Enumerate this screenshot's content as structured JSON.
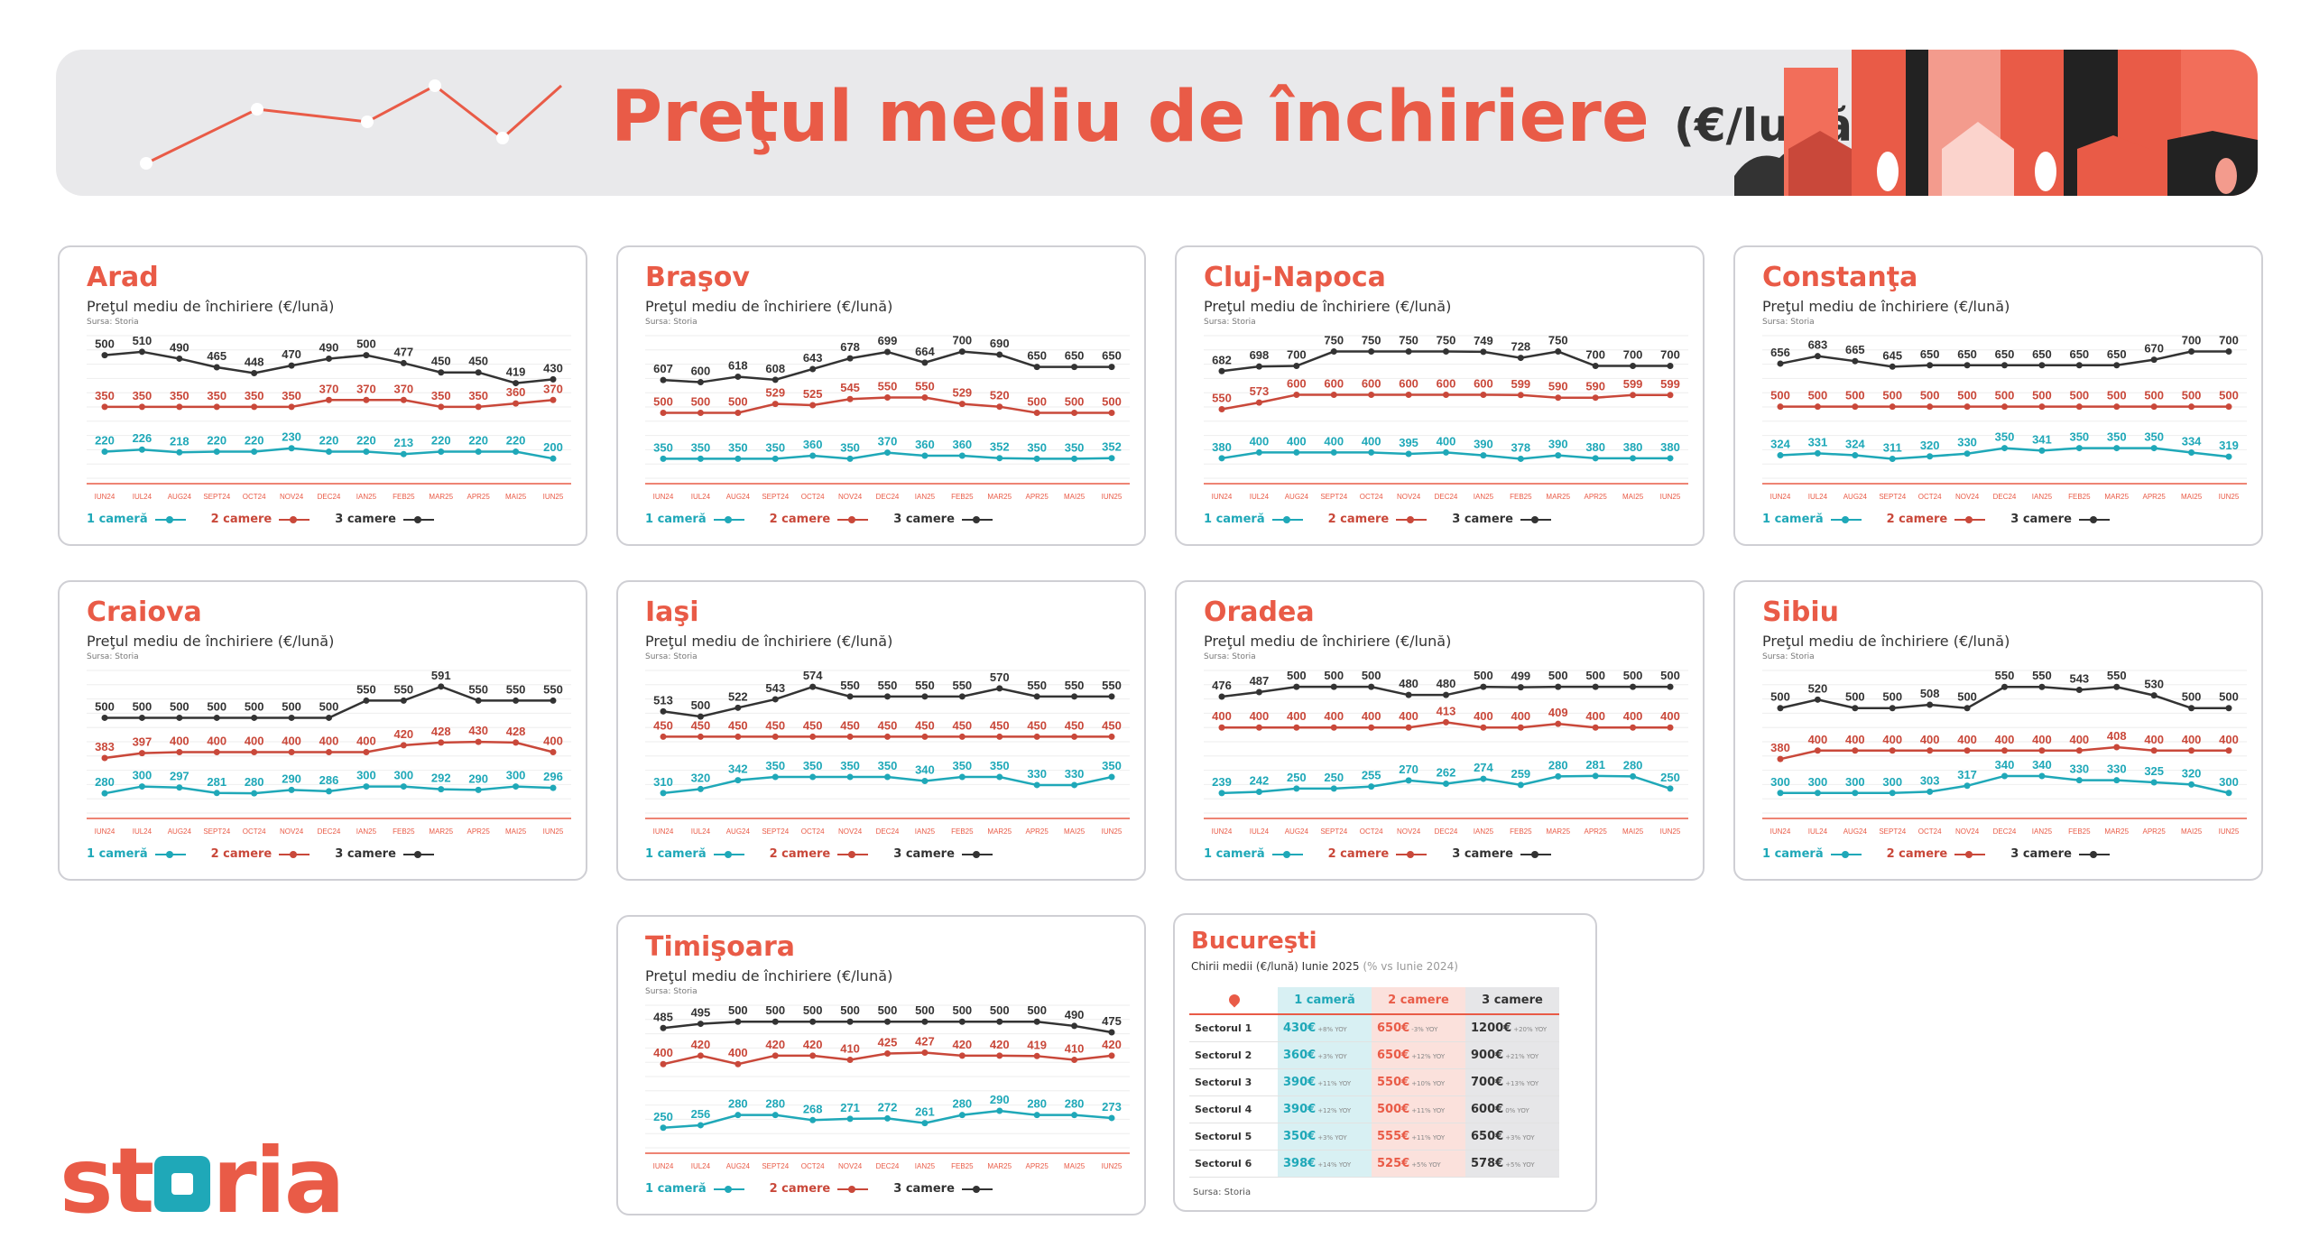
{
  "header": {
    "title": "Preţul mediu de închiriere",
    "unit": "(€/lună)"
  },
  "logo": {
    "text_before": "st",
    "text_after": "ria",
    "label": "storia"
  },
  "common": {
    "subtitle": "Preţul mediu de închiriere (€/lună)",
    "source": "Sursa: Storia",
    "months": [
      "IUN24",
      "IUL24",
      "AUG24",
      "SEPT24",
      "OCT24",
      "NOV24",
      "DEC24",
      "IAN25",
      "FEB25",
      "MAR25",
      "APR25",
      "MAI25",
      "IUN25"
    ],
    "legend": [
      "1 cameră",
      "2 camere",
      "3 camere"
    ]
  },
  "colors": {
    "one": "#1fa8b8",
    "two": "#c9483a",
    "three": "#333333",
    "accent": "#e95b47"
  },
  "chart_data": [
    {
      "type": "line",
      "title": "Arad",
      "categories_ref": "common.months",
      "series": [
        {
          "name": "1 cameră",
          "values": [
            220,
            226,
            218,
            220,
            220,
            230,
            220,
            220,
            213,
            220,
            220,
            220,
            200
          ]
        },
        {
          "name": "2 camere",
          "values": [
            350,
            350,
            350,
            350,
            350,
            350,
            370,
            370,
            370,
            350,
            350,
            360,
            370
          ]
        },
        {
          "name": "3 camere",
          "values": [
            500,
            510,
            490,
            465,
            448,
            470,
            490,
            500,
            477,
            450,
            450,
            419,
            430
          ]
        }
      ]
    },
    {
      "type": "line",
      "title": "Braşov",
      "categories_ref": "common.months",
      "series": [
        {
          "name": "1 cameră",
          "values": [
            350,
            350,
            350,
            350,
            360,
            350,
            370,
            360,
            360,
            352,
            350,
            350,
            352
          ]
        },
        {
          "name": "2 camere",
          "values": [
            500,
            500,
            500,
            529,
            525,
            545,
            550,
            550,
            529,
            520,
            500,
            500,
            500
          ]
        },
        {
          "name": "3 camere",
          "values": [
            607,
            600,
            618,
            608,
            643,
            678,
            699,
            664,
            700,
            690,
            650,
            650,
            650
          ]
        }
      ]
    },
    {
      "type": "line",
      "title": "Cluj-Napoca",
      "categories_ref": "common.months",
      "series": [
        {
          "name": "1 cameră",
          "values": [
            380,
            400,
            400,
            400,
            400,
            395,
            400,
            390,
            378,
            390,
            380,
            380,
            380
          ]
        },
        {
          "name": "2 camere",
          "values": [
            550,
            573,
            600,
            600,
            600,
            600,
            600,
            600,
            599,
            590,
            590,
            599,
            599
          ]
        },
        {
          "name": "3 camere",
          "values": [
            682,
            698,
            700,
            750,
            750,
            750,
            750,
            749,
            728,
            750,
            700,
            700,
            700
          ]
        }
      ]
    },
    {
      "type": "line",
      "title": "Constanţa",
      "categories_ref": "common.months",
      "series": [
        {
          "name": "1 cameră",
          "values": [
            324,
            331,
            324,
            311,
            320,
            330,
            350,
            341,
            350,
            350,
            350,
            334,
            319
          ]
        },
        {
          "name": "2 camere",
          "values": [
            500,
            500,
            500,
            500,
            500,
            500,
            500,
            500,
            500,
            500,
            500,
            500,
            500
          ]
        },
        {
          "name": "3 camere",
          "values": [
            656,
            683,
            665,
            645,
            650,
            650,
            650,
            650,
            650,
            650,
            670,
            700,
            700
          ]
        }
      ]
    },
    {
      "type": "line",
      "title": "Craiova",
      "categories_ref": "common.months",
      "series": [
        {
          "name": "1 cameră",
          "values": [
            280,
            300,
            297,
            281,
            280,
            290,
            286,
            300,
            300,
            292,
            290,
            300,
            296
          ]
        },
        {
          "name": "2 camere",
          "values": [
            383,
            397,
            400,
            400,
            400,
            400,
            400,
            400,
            420,
            428,
            430,
            428,
            400
          ]
        },
        {
          "name": "3 camere",
          "values": [
            500,
            500,
            500,
            500,
            500,
            500,
            500,
            550,
            550,
            591,
            550,
            550,
            550
          ]
        }
      ]
    },
    {
      "type": "line",
      "title": "Iaşi",
      "categories_ref": "common.months",
      "series": [
        {
          "name": "1 cameră",
          "values": [
            310,
            320,
            342,
            350,
            350,
            350,
            350,
            340,
            350,
            350,
            330,
            330,
            350
          ]
        },
        {
          "name": "2 camere",
          "values": [
            450,
            450,
            450,
            450,
            450,
            450,
            450,
            450,
            450,
            450,
            450,
            450,
            450
          ]
        },
        {
          "name": "3 camere",
          "values": [
            513,
            500,
            522,
            543,
            574,
            550,
            550,
            550,
            550,
            570,
            550,
            550,
            550
          ]
        }
      ]
    },
    {
      "type": "line",
      "title": "Oradea",
      "categories_ref": "common.months",
      "series": [
        {
          "name": "1 cameră",
          "values": [
            239,
            242,
            250,
            250,
            255,
            270,
            262,
            274,
            259,
            280,
            281,
            280,
            250
          ]
        },
        {
          "name": "2 camere",
          "values": [
            400,
            400,
            400,
            400,
            400,
            400,
            413,
            400,
            400,
            409,
            400,
            400,
            400
          ]
        },
        {
          "name": "3 camere",
          "values": [
            476,
            487,
            500,
            500,
            500,
            480,
            480,
            500,
            499,
            500,
            500,
            500,
            500
          ]
        }
      ]
    },
    {
      "type": "line",
      "title": "Sibiu",
      "categories_ref": "common.months",
      "series": [
        {
          "name": "1 cameră",
          "values": [
            300,
            300,
            300,
            300,
            303,
            317,
            340,
            340,
            330,
            330,
            325,
            320,
            300
          ]
        },
        {
          "name": "2 camere",
          "values": [
            380,
            400,
            400,
            400,
            400,
            400,
            400,
            400,
            400,
            408,
            400,
            400,
            400
          ]
        },
        {
          "name": "3 camere",
          "values": [
            500,
            520,
            500,
            500,
            508,
            500,
            550,
            550,
            543,
            550,
            530,
            500,
            500
          ]
        }
      ]
    },
    {
      "type": "line",
      "title": "Timişoara",
      "categories_ref": "common.months",
      "series": [
        {
          "name": "1 cameră",
          "values": [
            250,
            256,
            280,
            280,
            268,
            271,
            272,
            261,
            280,
            290,
            280,
            280,
            273
          ]
        },
        {
          "name": "2 camere",
          "values": [
            400,
            420,
            400,
            420,
            420,
            410,
            425,
            427,
            420,
            420,
            419,
            410,
            420
          ]
        },
        {
          "name": "3 camere",
          "values": [
            485,
            495,
            500,
            500,
            500,
            500,
            500,
            500,
            500,
            500,
            500,
            490,
            475
          ]
        }
      ]
    },
    {
      "type": "table",
      "title": "Bucureşti",
      "subtitle": "Chirii medii (€/lună) Iunie 2025",
      "note": "(% vs Iunie 2024)",
      "columns": [
        "1 cameră",
        "2 camere",
        "3 camere"
      ],
      "rows": [
        {
          "label": "Sectorul 1",
          "cells": [
            [
              "430€",
              "+8% YOY"
            ],
            [
              "650€",
              "-3% YOY"
            ],
            [
              "1200€",
              "+20% YOY"
            ]
          ]
        },
        {
          "label": "Sectorul 2",
          "cells": [
            [
              "360€",
              "+3% YOY"
            ],
            [
              "650€",
              "+12% YOY"
            ],
            [
              "900€",
              "+21% YOY"
            ]
          ]
        },
        {
          "label": "Sectorul 3",
          "cells": [
            [
              "390€",
              "+11% YOY"
            ],
            [
              "550€",
              "+10% YOY"
            ],
            [
              "700€",
              "+13% YOY"
            ]
          ]
        },
        {
          "label": "Sectorul 4",
          "cells": [
            [
              "390€",
              "+12% YOY"
            ],
            [
              "500€",
              "+11% YOY"
            ],
            [
              "600€",
              "0% YOY"
            ]
          ]
        },
        {
          "label": "Sectorul 5",
          "cells": [
            [
              "350€",
              "+3% YOY"
            ],
            [
              "555€",
              "+11% YOY"
            ],
            [
              "650€",
              "+3% YOY"
            ]
          ]
        },
        {
          "label": "Sectorul 6",
          "cells": [
            [
              "398€",
              "+14% YOY"
            ],
            [
              "525€",
              "+5% YOY"
            ],
            [
              "578€",
              "+5% YOY"
            ]
          ]
        }
      ],
      "source": "Sursa: Storia"
    }
  ]
}
